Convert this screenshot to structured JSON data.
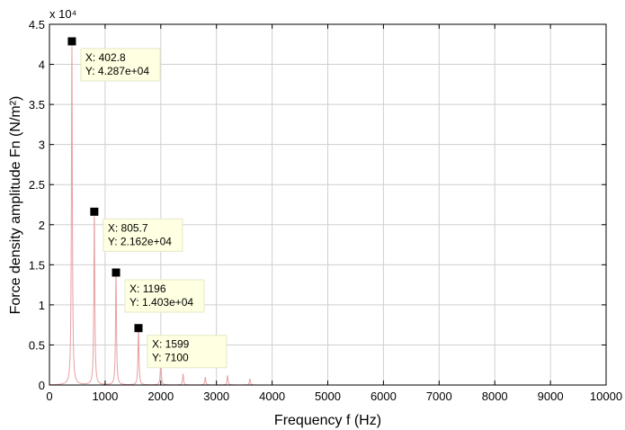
{
  "chart_data": {
    "type": "line",
    "xlabel": "Frequency f (Hz)",
    "ylabel": "Force density amplitude   Fn  (N/m²)",
    "exponent_label": "x 10⁴",
    "xlim": [
      0,
      10000
    ],
    "ylim": [
      0,
      45000
    ],
    "x_ticks": [
      0,
      1000,
      2000,
      3000,
      4000,
      5000,
      6000,
      7000,
      8000,
      9000,
      10000
    ],
    "x_tick_labels": [
      "0",
      "1000",
      "2000",
      "3000",
      "4000",
      "5000",
      "6000",
      "7000",
      "8000",
      "9000",
      "10000"
    ],
    "y_ticks": [
      0,
      5000,
      10000,
      15000,
      20000,
      25000,
      30000,
      35000,
      40000,
      45000
    ],
    "y_tick_labels": [
      "0",
      "0.5",
      "1",
      "1.5",
      "2",
      "2.5",
      "3",
      "3.5",
      "4",
      "4.5"
    ],
    "grid": true,
    "line_color": "#e8a0a0",
    "peaks": [
      {
        "x": 402.8,
        "y": 42870
      },
      {
        "x": 805.7,
        "y": 21620
      },
      {
        "x": 1196,
        "y": 14030
      },
      {
        "x": 1599,
        "y": 7100
      },
      {
        "x": 2000,
        "y": 3400
      },
      {
        "x": 2400,
        "y": 1400
      },
      {
        "x": 2800,
        "y": 1000
      },
      {
        "x": 3200,
        "y": 1200
      },
      {
        "x": 3600,
        "y": 800
      }
    ],
    "datatips": [
      {
        "x_text": "X: 402.8",
        "y_text": "Y: 4.287e+04",
        "x": 402.8,
        "y": 42870
      },
      {
        "x_text": "X: 805.7",
        "y_text": "Y: 2.162e+04",
        "x": 805.7,
        "y": 21620
      },
      {
        "x_text": "X: 1196",
        "y_text": "Y: 1.403e+04",
        "x": 1196,
        "y": 14030
      },
      {
        "x_text": "X: 1599",
        "y_text": "Y: 7100",
        "x": 1599,
        "y": 7100
      }
    ]
  }
}
